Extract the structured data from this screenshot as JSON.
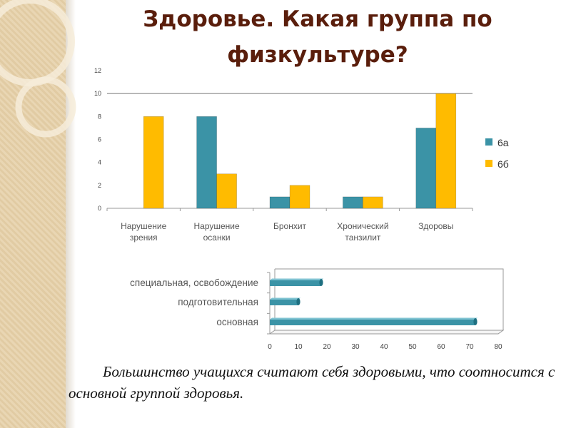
{
  "title": "Здоровье. Какая группа по физкультуре?",
  "caption": "Большинство учащихся считают себя здоровыми, что соотносится с основной группой здоровья.",
  "colors": {
    "series_1": "#3b93a6",
    "series_2": "#ffbb00",
    "title": "#5a1e0c",
    "panel": "#e5d0ab"
  },
  "chart_data": [
    {
      "type": "bar",
      "categories": [
        [
          "Нарушение",
          "зрения"
        ],
        [
          "Нарушение",
          "осанки"
        ],
        [
          "Бронхит"
        ],
        [
          "Хронический",
          "танзилит"
        ],
        [
          "Здоровы"
        ]
      ],
      "series": [
        {
          "name": "6а",
          "values": [
            0,
            8,
            1,
            1,
            7
          ]
        },
        {
          "name": "6б",
          "values": [
            8,
            3,
            2,
            1,
            10
          ]
        }
      ],
      "ylim": [
        0,
        12
      ],
      "yticks": [
        0,
        2,
        4,
        6,
        8,
        10,
        12
      ],
      "legend": "right",
      "grid": true
    },
    {
      "type": "bar",
      "orientation": "horizontal",
      "categories": [
        "специальная, освобождение",
        "подготовительная",
        "основная"
      ],
      "values": [
        18,
        10,
        72
      ],
      "xlim": [
        0,
        80
      ],
      "xticks": [
        0,
        10,
        20,
        30,
        40,
        50,
        60,
        70,
        80
      ],
      "grid": false
    }
  ]
}
